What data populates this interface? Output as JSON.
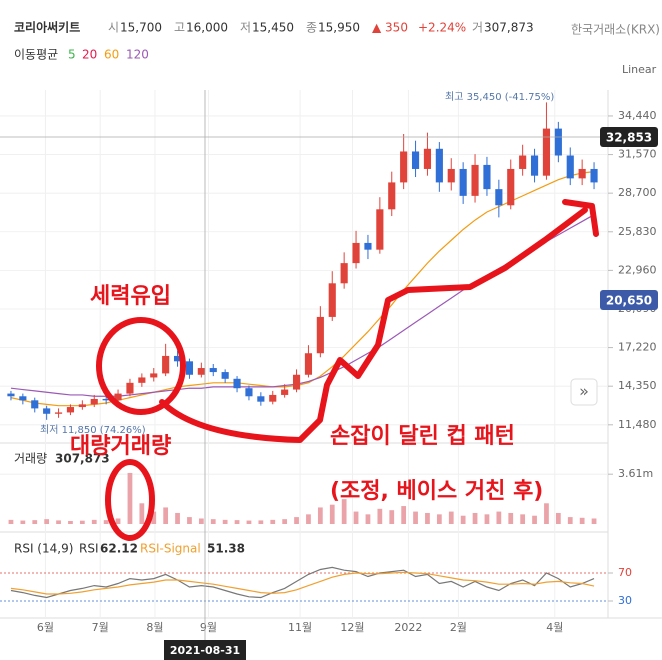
{
  "header": {
    "name": "코리아써키트",
    "stats": [
      {
        "label": "시",
        "value": "15,700"
      },
      {
        "label": "고",
        "value": "16,000"
      },
      {
        "label": "저",
        "value": "15,450"
      },
      {
        "label": "종",
        "value": "15,950"
      }
    ],
    "change": "▲ 350",
    "change_pct": "+2.24%",
    "volume_label": "거",
    "volume": "307,873",
    "exchange": "한국거래소(KRX)",
    "ma_title": "이동평균",
    "moving_averages": [
      {
        "label": "5",
        "color": "#3cb44b"
      },
      {
        "label": "20",
        "color": "#e6194b"
      },
      {
        "label": "60",
        "color": "#f39c12"
      },
      {
        "label": "120",
        "color": "#9b59b6"
      }
    ],
    "scale": "Linear"
  },
  "annotations": {
    "high": "최고 35,450 (-41.75%)",
    "low": "최저 11,850 (74.26%)",
    "badge_cross": "32,853",
    "badge_ma": "20,650",
    "date": "2021-08-31",
    "inflow": "세력유입",
    "big_volume": "대량거래량",
    "pattern": "손잡이 달린 컵 패턴",
    "pattern_note": "(조정, 베이스 거친 후)",
    "volume_title": "거래량",
    "volume_value": "307,873",
    "rsi_title": "RSI (14,9)",
    "rsi_label": "RSI",
    "rsi_value": "62.12",
    "signal_label": "RSI-Signal",
    "signal_value": "51.38"
  },
  "chart_data": [
    {
      "type": "candlestick",
      "up_color": "#e0433a",
      "down_color": "#2f6fd6",
      "grid": true,
      "xlim": [
        0,
        50
      ],
      "xticks": [
        {
          "value": 3.4,
          "label": "6월"
        },
        {
          "value": 8.0,
          "label": "7월"
        },
        {
          "value": 12.6,
          "label": "8월"
        },
        {
          "value": 17.1,
          "label": "9월"
        },
        {
          "value": 24.8,
          "label": "11월"
        },
        {
          "value": 29.2,
          "label": "12월"
        },
        {
          "value": 33.9,
          "label": "2022"
        },
        {
          "value": 38.1,
          "label": "2월"
        },
        {
          "value": 46.2,
          "label": "4월"
        }
      ],
      "ylim": [
        10350,
        36370
      ],
      "yticks": [
        {
          "value": 11480,
          "label": "11,480"
        },
        {
          "value": 14350,
          "label": "14,350"
        },
        {
          "value": 17220,
          "label": "17,220"
        },
        {
          "value": 20090,
          "label": "20,090"
        },
        {
          "value": 22960,
          "label": "22,960"
        },
        {
          "value": 25830,
          "label": "25,830"
        },
        {
          "value": 28700,
          "label": "28,700"
        },
        {
          "value": 31570,
          "label": "31,570"
        },
        {
          "value": 34440,
          "label": "34,440"
        }
      ],
      "open": [
        13800,
        13600,
        13300,
        12700,
        12300,
        12400,
        12800,
        13000,
        13400,
        13300,
        13800,
        14600,
        15000,
        15300,
        16600,
        16200,
        15200,
        15700,
        15400,
        14900,
        14200,
        13600,
        13200,
        13700,
        14100,
        15200,
        16800,
        19500,
        22000,
        23500,
        25000,
        24500,
        27500,
        29500,
        31800,
        30500,
        32000,
        29500,
        30500,
        28500,
        30800,
        29000,
        27800,
        30500,
        31500,
        30000,
        33500,
        31500,
        29800,
        30500
      ],
      "high": [
        14000,
        13800,
        13500,
        12900,
        12700,
        13000,
        13300,
        13700,
        13600,
        14100,
        14900,
        15300,
        15700,
        17500,
        17000,
        16400,
        16100,
        16000,
        15600,
        15100,
        14400,
        13900,
        14000,
        14500,
        15600,
        17400,
        20300,
        22900,
        24300,
        25900,
        25600,
        28400,
        30300,
        33100,
        32600,
        33200,
        32500,
        31300,
        31000,
        31600,
        31400,
        29700,
        31200,
        32300,
        32000,
        35450,
        34000,
        32100,
        31200,
        31000
      ],
      "low": [
        13300,
        13000,
        12400,
        11850,
        12000,
        12200,
        12600,
        12800,
        13000,
        13100,
        13600,
        14300,
        14700,
        15100,
        15800,
        14900,
        15000,
        15100,
        14600,
        13900,
        13300,
        12900,
        13000,
        13500,
        13900,
        15000,
        16500,
        19200,
        21600,
        23100,
        23800,
        24200,
        27000,
        29000,
        29900,
        30000,
        28800,
        28900,
        27900,
        28000,
        28500,
        26900,
        27500,
        30000,
        29500,
        29700,
        31000,
        29300,
        29300,
        29000
      ],
      "close": [
        13600,
        13300,
        12700,
        12300,
        12400,
        12800,
        13000,
        13400,
        13300,
        13800,
        14600,
        15000,
        15300,
        16600,
        16200,
        15200,
        15700,
        15400,
        14900,
        14200,
        13600,
        13200,
        13700,
        14100,
        15200,
        16800,
        19500,
        22000,
        23500,
        25000,
        24500,
        27500,
        29500,
        31800,
        30500,
        32000,
        29500,
        30500,
        28500,
        30800,
        29000,
        27800,
        30500,
        31500,
        30000,
        33500,
        31500,
        29800,
        30500,
        29500
      ],
      "series": [
        {
          "color": "#f39c12",
          "values": [
            13500,
            13300,
            13100,
            13000,
            12900,
            12900,
            12900,
            13000,
            13100,
            13300,
            13500,
            13700,
            13900,
            14100,
            14300,
            14400,
            14500,
            14600,
            14600,
            14600,
            14500,
            14400,
            14300,
            14300,
            14400,
            14600,
            15100,
            15800,
            16600,
            17500,
            18400,
            19400,
            20400,
            21500,
            22500,
            23500,
            24400,
            25200,
            26000,
            26700,
            27300,
            27700,
            28100,
            28500,
            28900,
            29300,
            29700,
            30000,
            30200,
            30300
          ]
        },
        {
          "color": "#9b59b6",
          "values": [
            14200,
            14100,
            14000,
            13900,
            13800,
            13700,
            13700,
            13600,
            13600,
            13600,
            13700,
            13800,
            13900,
            14000,
            14100,
            14200,
            14200,
            14300,
            14300,
            14300,
            14300,
            14300,
            14300,
            14400,
            14500,
            14700,
            15000,
            15400,
            15800,
            16300,
            16800,
            17300,
            17900,
            18500,
            19100,
            19700,
            20300,
            20900,
            21500,
            22100,
            22600,
            23100,
            23600,
            24100,
            24600,
            25100,
            25600,
            26100,
            26600,
            27100
          ]
        }
      ]
    },
    {
      "type": "bar",
      "color": "#eaa3a8",
      "xlim": [
        0,
        50
      ],
      "ylim": [
        0,
        5000000
      ],
      "yticks": [
        {
          "value": 3610000,
          "label": "3.61m"
        }
      ],
      "values": [
        300000,
        250000,
        280000,
        350000,
        260000,
        220000,
        240000,
        300000,
        280000,
        400000,
        3700000,
        1500000,
        900000,
        1200000,
        800000,
        500000,
        400000,
        350000,
        300000,
        280000,
        250000,
        260000,
        300000,
        350000,
        500000,
        700000,
        1200000,
        1400000,
        1800000,
        900000,
        700000,
        1100000,
        1000000,
        1300000,
        900000,
        800000,
        700000,
        900000,
        600000,
        800000,
        700000,
        900000,
        800000,
        700000,
        600000,
        1500000,
        800000,
        500000,
        450000,
        400000
      ]
    },
    {
      "type": "line",
      "xlim": [
        0,
        50
      ],
      "ylim": [
        10,
        110
      ],
      "yticks": [
        70,
        30
      ],
      "tick_colors": [
        "#e0433a",
        "#2f6fd6"
      ],
      "series": [
        {
          "color": "#777777",
          "values": [
            45,
            42,
            38,
            35,
            40,
            45,
            48,
            52,
            50,
            55,
            62,
            60,
            62,
            68,
            60,
            50,
            52,
            50,
            45,
            40,
            36,
            35,
            42,
            48,
            58,
            68,
            75,
            78,
            74,
            72,
            65,
            70,
            72,
            74,
            65,
            68,
            55,
            58,
            50,
            58,
            50,
            45,
            55,
            60,
            52,
            70,
            62,
            50,
            55,
            62.12
          ]
        },
        {
          "color": "#f0a030",
          "values": [
            48,
            46,
            43,
            40,
            40,
            41,
            43,
            46,
            48,
            50,
            53,
            55,
            57,
            60,
            60,
            58,
            56,
            54,
            51,
            48,
            45,
            42,
            41,
            42,
            46,
            52,
            58,
            64,
            68,
            70,
            69,
            69,
            70,
            71,
            70,
            69,
            66,
            63,
            60,
            59,
            57,
            54,
            54,
            55,
            54,
            57,
            58,
            56,
            55,
            51.38
          ]
        }
      ]
    }
  ]
}
